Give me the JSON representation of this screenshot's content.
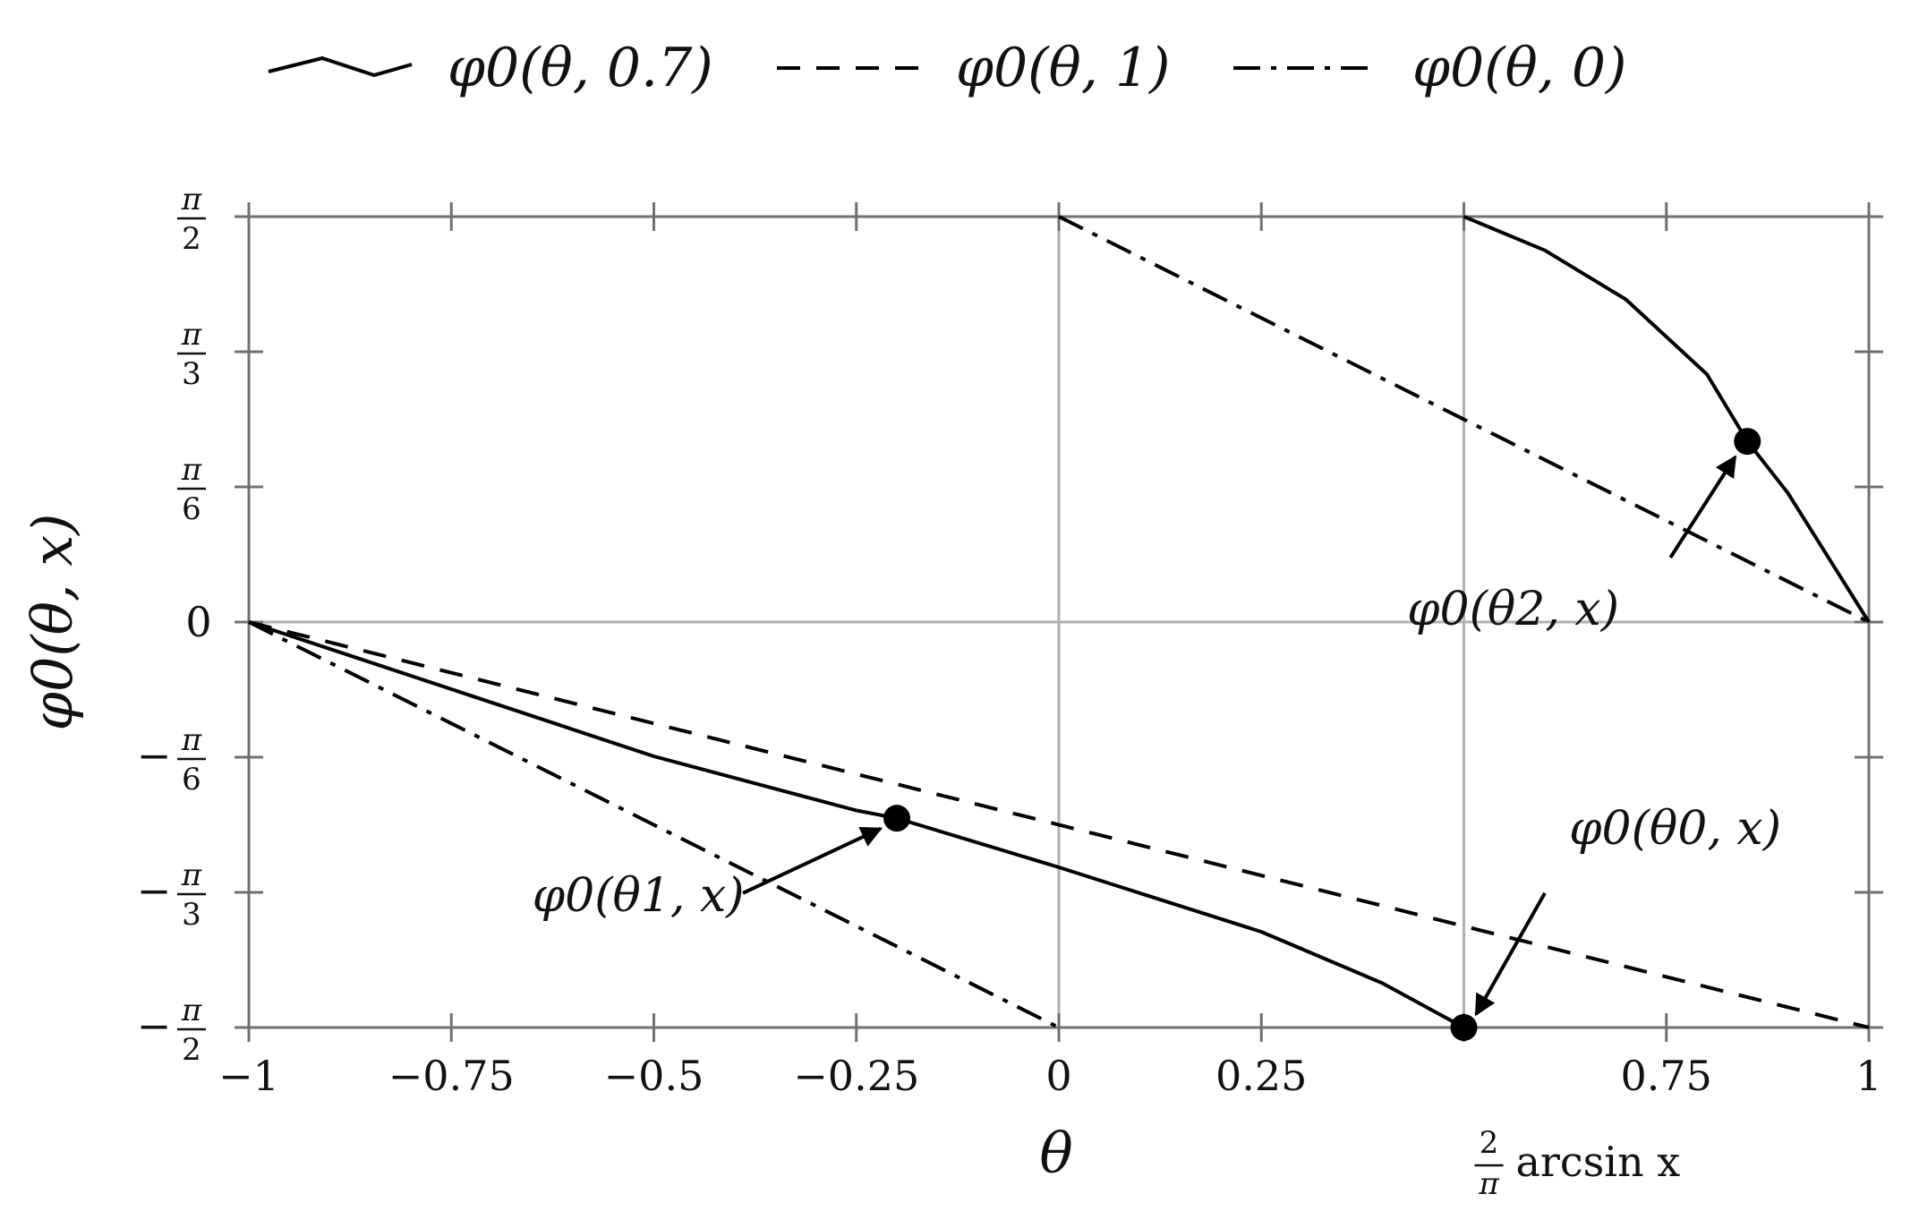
{
  "chart_data": {
    "type": "line",
    "xlabel": "θ",
    "ylabel": "φ0(θ, x)",
    "xlim": [
      -1,
      1
    ],
    "ylim": [
      -1.5708,
      1.5708
    ],
    "grid": "vertical line at θ=0 and θ=0.5, horizontal line at φ=0",
    "legend_placement": "top",
    "x_ticks": [
      {
        "value": -1,
        "label": "−1"
      },
      {
        "value": -0.75,
        "label": "−0.75"
      },
      {
        "value": -0.5,
        "label": "−0.5"
      },
      {
        "value": -0.25,
        "label": "−0.25"
      },
      {
        "value": 0,
        "label": "0"
      },
      {
        "value": 0.25,
        "label": "0.25"
      },
      {
        "value": 0.75,
        "label": "0.75"
      },
      {
        "value": 1,
        "label": "1"
      }
    ],
    "special_x_tick": {
      "value": 0.5,
      "num": "2",
      "den": "π",
      "text": "arcsin x"
    },
    "y_ticks": [
      {
        "value": 1.5708,
        "sign": "",
        "num": "π",
        "den": "2"
      },
      {
        "value": 1.0472,
        "sign": "",
        "num": "π",
        "den": "3"
      },
      {
        "value": 0.5236,
        "sign": "",
        "num": "π",
        "den": "6"
      },
      {
        "value": 0,
        "sign": "",
        "num": "",
        "den": "",
        "plain": "0"
      },
      {
        "value": -0.5236,
        "sign": "−",
        "num": "π",
        "den": "6"
      },
      {
        "value": -1.0472,
        "sign": "−",
        "num": "π",
        "den": "3"
      },
      {
        "value": -1.5708,
        "sign": "−",
        "num": "π",
        "den": "2"
      }
    ],
    "series": [
      {
        "name": "φ0(θ, 0.7)",
        "style": "solid",
        "segments": [
          [
            [
              -1,
              0
            ],
            [
              -0.75,
              -0.26
            ],
            [
              -0.5,
              -0.52
            ],
            [
              -0.25,
              -0.73
            ],
            [
              -0.2,
              -0.76
            ],
            [
              0,
              -0.95
            ],
            [
              0.25,
              -1.2
            ],
            [
              0.4,
              -1.4
            ],
            [
              0.5,
              -1.5708
            ]
          ],
          [
            [
              0.5,
              1.5708
            ],
            [
              0.6,
              1.44
            ],
            [
              0.7,
              1.25
            ],
            [
              0.8,
              0.96
            ],
            [
              0.85,
              0.7
            ],
            [
              0.9,
              0.5
            ],
            [
              1,
              0
            ]
          ]
        ]
      },
      {
        "name": "φ0(θ, 1)",
        "style": "dashed",
        "segments": [
          [
            [
              -1,
              0
            ],
            [
              1,
              -1.5708
            ]
          ]
        ]
      },
      {
        "name": "φ0(θ, 0)",
        "style": "dashdot",
        "segments": [
          [
            [
              -1,
              0
            ],
            [
              0,
              -1.5708
            ]
          ],
          [
            [
              0,
              1.5708
            ],
            [
              1,
              0
            ]
          ]
        ]
      }
    ],
    "points": [
      {
        "x": -0.2,
        "y": -0.76,
        "label": "φ0(θ1, x)"
      },
      {
        "x": 0.5,
        "y": -1.5708,
        "label": "φ0(θ0, x)"
      },
      {
        "x": 0.85,
        "y": 0.7,
        "label": "φ0(θ2, x)"
      }
    ],
    "annotations": [
      {
        "text": "φ0(θ1, x)",
        "tx": -0.65,
        "ty": -1.12,
        "ax0": -0.39,
        "ay0": -1.05,
        "ax1": -0.22,
        "ay1": -0.8
      },
      {
        "text": "φ0(θ0, x)",
        "tx": 0.63,
        "ty": -0.86,
        "ax0": 0.6,
        "ay0": -1.05,
        "ax1": 0.515,
        "ay1": -1.52
      },
      {
        "text": "φ0(θ2, x)",
        "tx": 0.43,
        "ty": -0.01,
        "ax0": 0.755,
        "ay0": 0.25,
        "ax1": 0.835,
        "ay1": 0.64
      }
    ]
  }
}
